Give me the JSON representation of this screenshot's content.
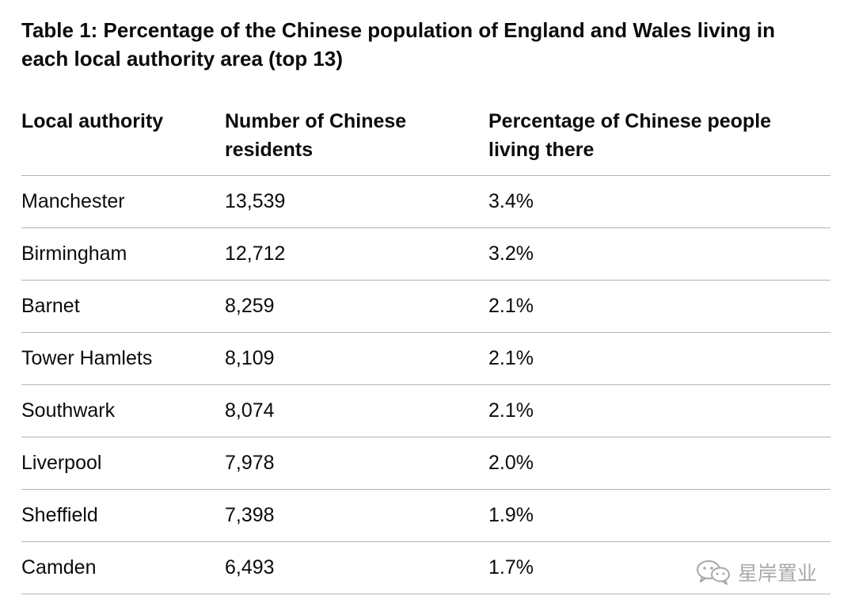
{
  "caption": "Table 1: Percentage of the Chinese population of England and Wales living in each local authority area (top 13)",
  "table": {
    "headers": [
      "Local authority",
      "Number of Chinese residents",
      "Percentage of Chinese people living there"
    ],
    "rows": [
      {
        "authority": "Manchester",
        "residents": "13,539",
        "percentage": "3.4%"
      },
      {
        "authority": "Birmingham",
        "residents": "12,712",
        "percentage": "3.2%"
      },
      {
        "authority": "Barnet",
        "residents": "8,259",
        "percentage": "2.1%"
      },
      {
        "authority": "Tower Hamlets",
        "residents": "8,109",
        "percentage": "2.1%"
      },
      {
        "authority": "Southwark",
        "residents": "8,074",
        "percentage": "2.1%"
      },
      {
        "authority": "Liverpool",
        "residents": "7,978",
        "percentage": "2.0%"
      },
      {
        "authority": "Sheffield",
        "residents": "7,398",
        "percentage": "1.9%"
      },
      {
        "authority": "Camden",
        "residents": "6,493",
        "percentage": "1.7%"
      }
    ]
  },
  "watermark": {
    "icon": "wechat-icon",
    "text": "星岸置业"
  }
}
